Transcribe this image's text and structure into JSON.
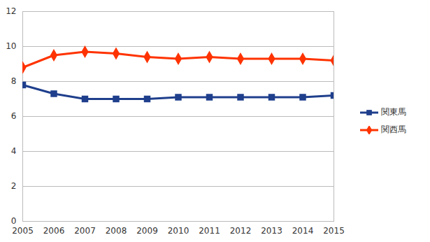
{
  "chart_data": {
    "type": "line",
    "x": [
      2005,
      2006,
      2007,
      2008,
      2009,
      2010,
      2011,
      2012,
      2013,
      2014,
      2015
    ],
    "series": [
      {
        "name": "関東馬",
        "color": "#1f3f8c",
        "marker": "square",
        "values": [
          7.8,
          7.3,
          7.0,
          7.0,
          7.0,
          7.1,
          7.1,
          7.1,
          7.1,
          7.1,
          7.2
        ]
      },
      {
        "name": "関西馬",
        "color": "#ff3300",
        "marker": "diamond",
        "values": [
          8.8,
          9.5,
          9.7,
          9.6,
          9.4,
          9.3,
          9.4,
          9.3,
          9.3,
          9.3,
          9.2
        ]
      }
    ],
    "xlim": [
      2005,
      2015
    ],
    "xticks": [
      2005,
      2006,
      2007,
      2008,
      2009,
      2010,
      2011,
      2012,
      2013,
      2014,
      2015
    ],
    "ylim": [
      0,
      12
    ],
    "yticks": [
      0,
      2,
      4,
      6,
      8,
      10,
      12
    ],
    "grid": true,
    "legend": "right"
  }
}
